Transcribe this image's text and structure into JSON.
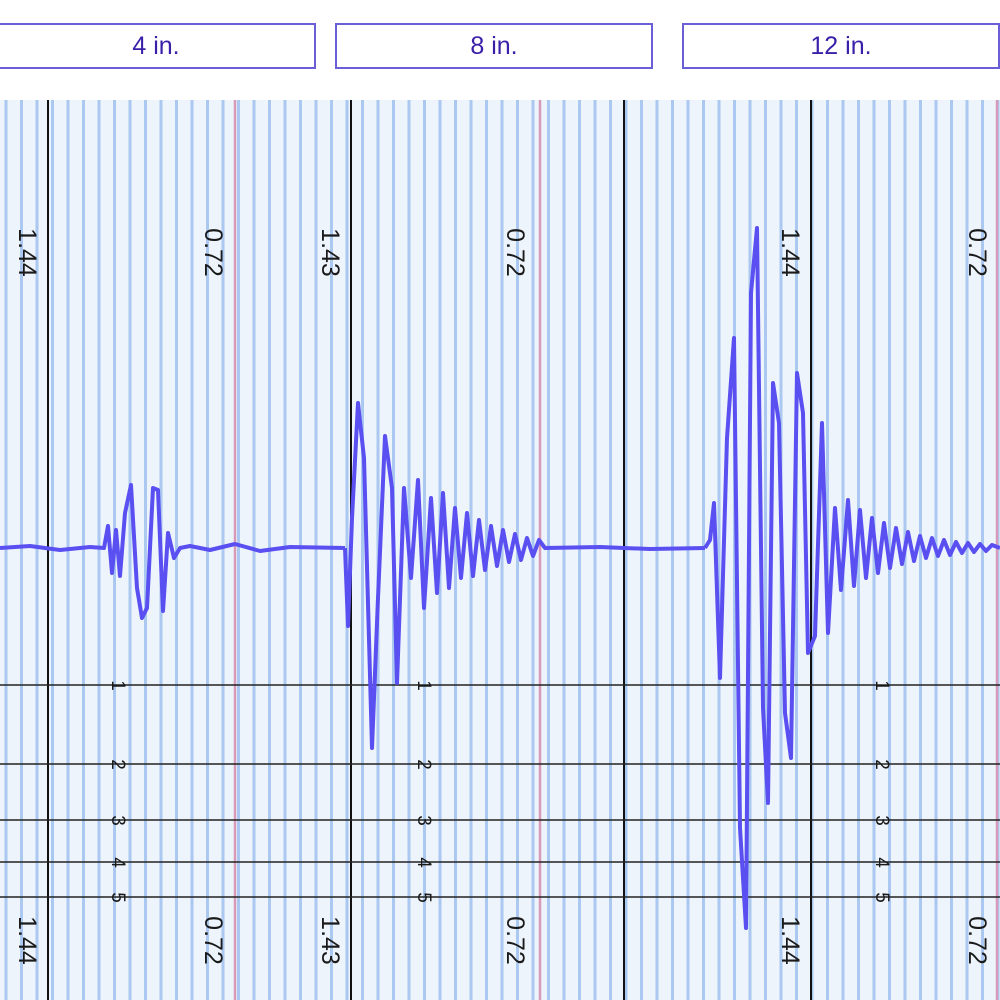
{
  "tabs": [
    {
      "id": "tab-4",
      "label": "4 in."
    },
    {
      "id": "tab-8",
      "label": "8 in."
    },
    {
      "id": "tab-12",
      "label": "12 in."
    }
  ],
  "scale_labels": {
    "panel_1_left": "1.44",
    "panel_1_mid": "0.72",
    "panel_2_left": "1.43",
    "panel_2_mid": "0.72",
    "panel_3_left": "1.44",
    "panel_3_mid": "0.72"
  },
  "magnitude_labels": [
    "1",
    "2",
    "3",
    "4",
    "5"
  ],
  "colors": {
    "trace": "#5a4ff0",
    "grid_blue": "#aac8f0",
    "grid_red": "#d79ab8",
    "background": "#eef4fc",
    "tab_border": "#6a5fd6",
    "tab_text": "#3a1fa8"
  }
}
